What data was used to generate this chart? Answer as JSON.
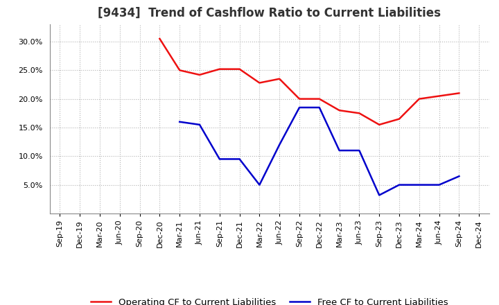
{
  "title": "[9434]  Trend of Cashflow Ratio to Current Liabilities",
  "x_labels": [
    "Sep-19",
    "Dec-19",
    "Mar-20",
    "Jun-20",
    "Sep-20",
    "Dec-20",
    "Mar-21",
    "Jun-21",
    "Sep-21",
    "Dec-21",
    "Mar-22",
    "Jun-22",
    "Sep-22",
    "Dec-22",
    "Mar-23",
    "Jun-23",
    "Sep-23",
    "Dec-23",
    "Mar-24",
    "Jun-24",
    "Sep-24",
    "Dec-24"
  ],
  "operating_cf": {
    "x_indices": [
      5,
      6,
      7,
      8,
      9,
      10,
      11,
      12,
      13,
      14,
      15,
      16,
      17,
      18,
      19,
      20
    ],
    "values": [
      0.305,
      0.25,
      0.242,
      0.252,
      0.252,
      0.228,
      0.235,
      0.2,
      0.2,
      0.18,
      0.175,
      0.155,
      0.165,
      0.2,
      0.205,
      0.21
    ],
    "color": "#EE1111",
    "label": "Operating CF to Current Liabilities"
  },
  "free_cf": {
    "x_indices": [
      6,
      7,
      8,
      9,
      10,
      11,
      12,
      13,
      14,
      15,
      16,
      17,
      18,
      19,
      20
    ],
    "values": [
      0.16,
      0.155,
      0.095,
      0.095,
      0.05,
      0.12,
      0.185,
      0.185,
      0.11,
      0.11,
      0.032,
      0.05,
      0.05,
      0.05,
      0.065
    ],
    "color": "#0000CC",
    "label": "Free CF to Current Liabilities"
  },
  "ylim": [
    0,
    0.33
  ],
  "yticks": [
    0.05,
    0.1,
    0.15,
    0.2,
    0.25,
    0.3
  ],
  "background_color": "#FFFFFF",
  "plot_background": "#FFFFFF",
  "grid_color": "#AAAAAA",
  "title_fontsize": 12,
  "legend_fontsize": 9.5,
  "tick_fontsize": 8
}
